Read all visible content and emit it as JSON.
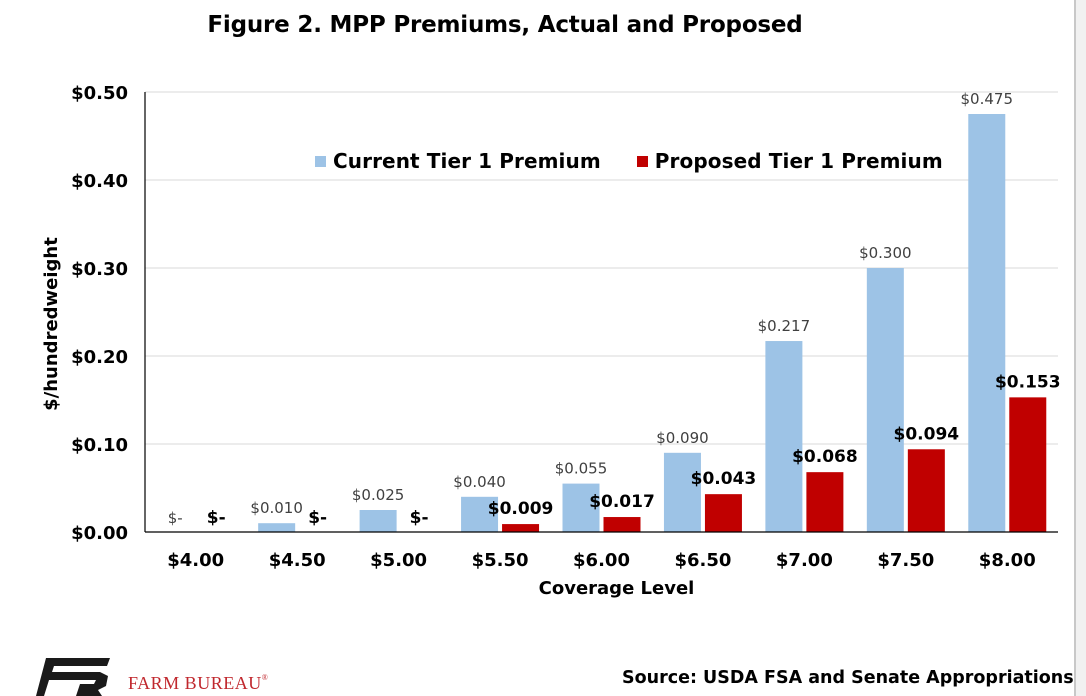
{
  "title": "Figure 2. MPP Premiums, Actual and Proposed",
  "source": "Source: USDA FSA and Senate Appropriations",
  "logo": {
    "text": "FARM BUREAU",
    "mark": "®",
    "color": "#c0272d"
  },
  "colors": {
    "current": "#9dc3e6",
    "proposed": "#c00000",
    "grid": "#d9d9d9"
  },
  "chart_data": {
    "type": "bar",
    "title": "Figure 2. MPP Premiums, Actual and Proposed",
    "xlabel": "Coverage Level",
    "ylabel": "$/hundredweight",
    "ylim": [
      0,
      0.5
    ],
    "yticks": [
      0,
      0.1,
      0.2,
      0.3,
      0.4,
      0.5
    ],
    "ytick_labels": [
      "$0.00",
      "$0.10",
      "$0.20",
      "$0.30",
      "$0.40",
      "$0.50"
    ],
    "grid": true,
    "legend_position": "top",
    "categories": [
      "$4.00",
      "$4.50",
      "$5.00",
      "$5.50",
      "$6.00",
      "$6.50",
      "$7.00",
      "$7.50",
      "$8.00"
    ],
    "series": [
      {
        "name": "Current Tier 1 Premium",
        "values": [
          0,
          0.01,
          0.025,
          0.04,
          0.055,
          0.09,
          0.217,
          0.3,
          0.475
        ],
        "labels": [
          "$-",
          "$0.010",
          "$0.025",
          "$0.040",
          "$0.055",
          "$0.090",
          "$0.217",
          "$0.300",
          "$0.475"
        ]
      },
      {
        "name": "Proposed Tier 1 Premium",
        "values": [
          0,
          0,
          0,
          0.009,
          0.017,
          0.043,
          0.068,
          0.094,
          0.153
        ],
        "labels": [
          "$-",
          "$-",
          "$-",
          "$0.009",
          "$0.017",
          "$0.043",
          "$0.068",
          "$0.094",
          "$0.153"
        ]
      }
    ]
  }
}
